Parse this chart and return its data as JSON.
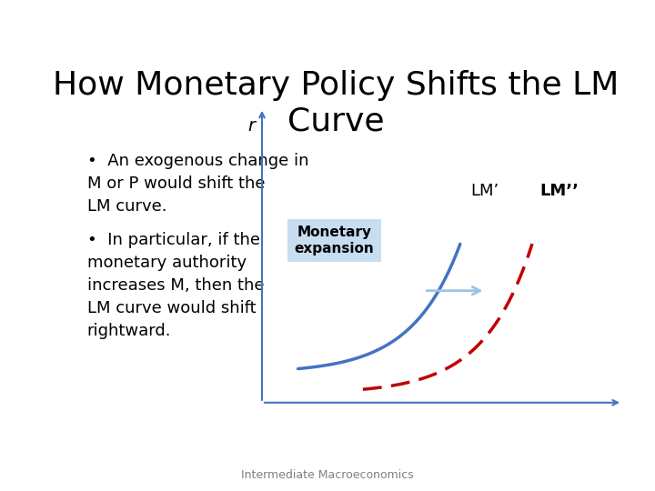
{
  "title": "How Monetary Policy Shifts the LM\nCurve",
  "title_fontsize": 26,
  "background_color": "#ffffff",
  "bullet1_line1": "•  An exogenous change in",
  "bullet1_line2": "M or P would shift the",
  "bullet1_line3": "LM curve.",
  "bullet2_line1": "•  In particular, if the",
  "bullet2_line2": "monetary authority",
  "bullet2_line3": "increases M, then the",
  "bullet2_line4": "LM curve would shift",
  "bullet2_line5": "rightward.",
  "lm_prime_label": "LM’",
  "lm_dbl_prime_label": "LM’’",
  "monetary_expansion_label": "Monetary\nexpansion",
  "r_label": "r",
  "axis_color": "#4472C4",
  "lm_prime_color": "#4472C4",
  "lm_dbl_prime_color": "#C00000",
  "arrow_color": "#9DC3E6",
  "box_color": "#BDD7EE",
  "footer_text": "Intermediate Macroeconomics",
  "footer_fontsize": 9
}
